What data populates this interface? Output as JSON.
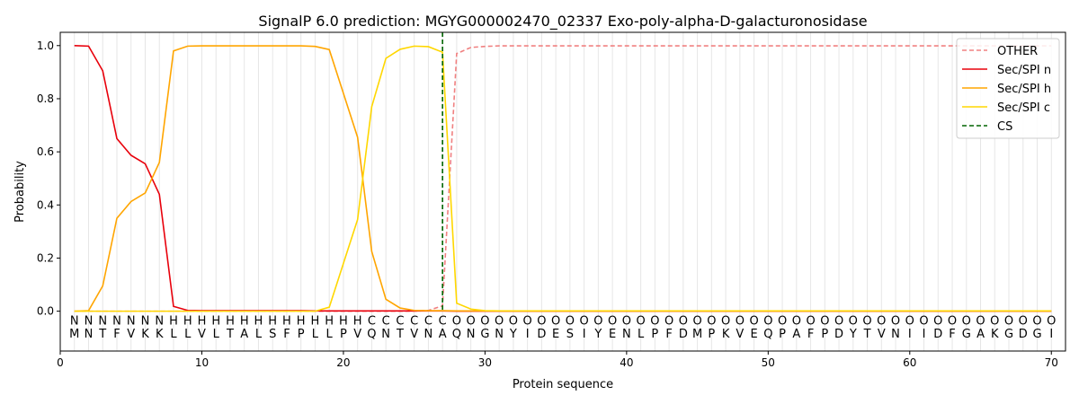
{
  "chart_data": {
    "type": "line",
    "title": "SignalP 6.0 prediction: MGYG000002470_02337 Exo-poly-alpha-D-galacturonosidase",
    "xlabel": "Protein sequence",
    "ylabel": "Probability",
    "xlim": [
      0,
      71
    ],
    "ylim": [
      -0.15,
      1.05
    ],
    "xticks": [
      "0",
      "10",
      "20",
      "30",
      "40",
      "50",
      "60",
      "70"
    ],
    "yticks": [
      "0.0",
      "0.2",
      "0.4",
      "0.6",
      "0.8",
      "1.0"
    ],
    "sequence": [
      "M",
      "N",
      "T",
      "F",
      "V",
      "K",
      "K",
      "L",
      "L",
      "V",
      "L",
      "T",
      "A",
      "L",
      "S",
      "F",
      "P",
      "L",
      "L",
      "P",
      "V",
      "Q",
      "N",
      "T",
      "V",
      "N",
      "A",
      "Q",
      "N",
      "G",
      "N",
      "Y",
      "I",
      "D",
      "E",
      "S",
      "I",
      "Y",
      "E",
      "N",
      "L",
      "P",
      "F",
      "D",
      "M",
      "P",
      "K",
      "V",
      "E",
      "Q",
      "P",
      "A",
      "F",
      "P",
      "D",
      "Y",
      "T",
      "V",
      "N",
      "I",
      "I",
      "D",
      "F",
      "G",
      "A",
      "K",
      "G",
      "D",
      "G",
      "I"
    ],
    "labels": [
      "N",
      "N",
      "N",
      "N",
      "N",
      "N",
      "N",
      "H",
      "H",
      "H",
      "H",
      "H",
      "H",
      "H",
      "H",
      "H",
      "H",
      "H",
      "H",
      "H",
      "H",
      "C",
      "C",
      "C",
      "C",
      "C",
      "C",
      "O",
      "O",
      "O",
      "O",
      "O",
      "O",
      "O",
      "O",
      "O",
      "O",
      "O",
      "O",
      "O",
      "O",
      "O",
      "O",
      "O",
      "O",
      "O",
      "O",
      "O",
      "O",
      "O",
      "O",
      "O",
      "O",
      "O",
      "O",
      "O",
      "O",
      "O",
      "O",
      "O",
      "O",
      "O",
      "O",
      "O",
      "O",
      "O",
      "O",
      "O",
      "O",
      "O"
    ],
    "label_colors": {
      "N": "#ff0000",
      "H": "#ffa500",
      "C": "#ffd700",
      "O": "#808080"
    },
    "series": [
      {
        "name": "OTHER",
        "color": "#f08080",
        "dash": true,
        "values": [
          0,
          0,
          0,
          0,
          0,
          0,
          0,
          0,
          0,
          0,
          0,
          0,
          0,
          0,
          0,
          0,
          0,
          0,
          0,
          0,
          0,
          0,
          0,
          0,
          0,
          0.003,
          0.02,
          0.97,
          0.993,
          0.997,
          0.999,
          0.999,
          0.999,
          0.999,
          0.999,
          0.999,
          0.999,
          0.999,
          0.999,
          0.999,
          0.999,
          0.999,
          0.999,
          0.999,
          0.999,
          0.999,
          0.999,
          0.999,
          0.999,
          0.999,
          0.999,
          0.999,
          0.999,
          0.999,
          0.999,
          0.999,
          0.999,
          0.999,
          0.999,
          0.999,
          0.999,
          0.999,
          0.999,
          0.999,
          0.999,
          0.999,
          0.999,
          0.999,
          0.999,
          0.999
        ]
      },
      {
        "name": "Sec/SPI n",
        "color": "#e8000b",
        "dash": false,
        "values": [
          1.0,
          0.998,
          0.905,
          0.65,
          0.587,
          0.555,
          0.44,
          0.018,
          0.003,
          0.002,
          0.002,
          0.002,
          0.002,
          0.002,
          0.002,
          0.002,
          0.002,
          0.001,
          0.001,
          0.001,
          0.001,
          0.001,
          0.001,
          0.001,
          0.001,
          0.001,
          0.001,
          0,
          0,
          0,
          0,
          0,
          0,
          0,
          0,
          0,
          0,
          0,
          0,
          0,
          0,
          0,
          0,
          0,
          0,
          0,
          0,
          0,
          0,
          0,
          0,
          0,
          0,
          0,
          0,
          0,
          0,
          0,
          0,
          0,
          0,
          0,
          0,
          0,
          0,
          0,
          0,
          0,
          0,
          0
        ]
      },
      {
        "name": "Sec/SPI h",
        "color": "#ffa500",
        "dash": false,
        "values": [
          0,
          0.002,
          0.095,
          0.35,
          0.413,
          0.445,
          0.56,
          0.98,
          0.998,
          0.999,
          0.999,
          0.999,
          0.999,
          0.999,
          0.999,
          0.999,
          0.999,
          0.997,
          0.985,
          0.82,
          0.655,
          0.225,
          0.045,
          0.012,
          0.003,
          0.002,
          0.002,
          0.001,
          0.001,
          0.001,
          0.001,
          0.001,
          0.001,
          0.001,
          0.001,
          0.001,
          0.001,
          0.001,
          0.001,
          0.001,
          0.001,
          0.001,
          0.001,
          0.001,
          0.001,
          0.001,
          0.001,
          0.001,
          0.001,
          0.001,
          0.001,
          0.001,
          0.001,
          0.001,
          0.001,
          0.001,
          0.001,
          0.001,
          0.001,
          0.001,
          0.001,
          0.001,
          0.001,
          0.001,
          0.001,
          0.001,
          0.001,
          0.001,
          0.001,
          0.001
        ]
      },
      {
        "name": "Sec/SPI c",
        "color": "#ffd700",
        "dash": false,
        "values": [
          0,
          0,
          0,
          0,
          0,
          0,
          0,
          0,
          0,
          0,
          0,
          0,
          0,
          0,
          0,
          0,
          0,
          0,
          0.015,
          0.18,
          0.345,
          0.77,
          0.952,
          0.986,
          0.998,
          0.996,
          0.975,
          0.03,
          0.008,
          0.002,
          0.001,
          0.001,
          0.001,
          0.001,
          0.001,
          0.001,
          0.001,
          0.001,
          0.001,
          0.001,
          0.001,
          0.001,
          0.001,
          0.001,
          0.001,
          0.001,
          0.001,
          0.001,
          0.001,
          0.001,
          0.001,
          0.001,
          0.001,
          0.001,
          0.001,
          0.001,
          0.001,
          0.001,
          0.001,
          0.001,
          0.001,
          0.001,
          0.001,
          0.001,
          0.001,
          0.001,
          0.001,
          0.001,
          0.001,
          0.001
        ]
      }
    ],
    "cs": {
      "name": "CS",
      "x": 27,
      "color": "#006400"
    },
    "legend": "top-right",
    "grid": "vertical at each residue"
  }
}
